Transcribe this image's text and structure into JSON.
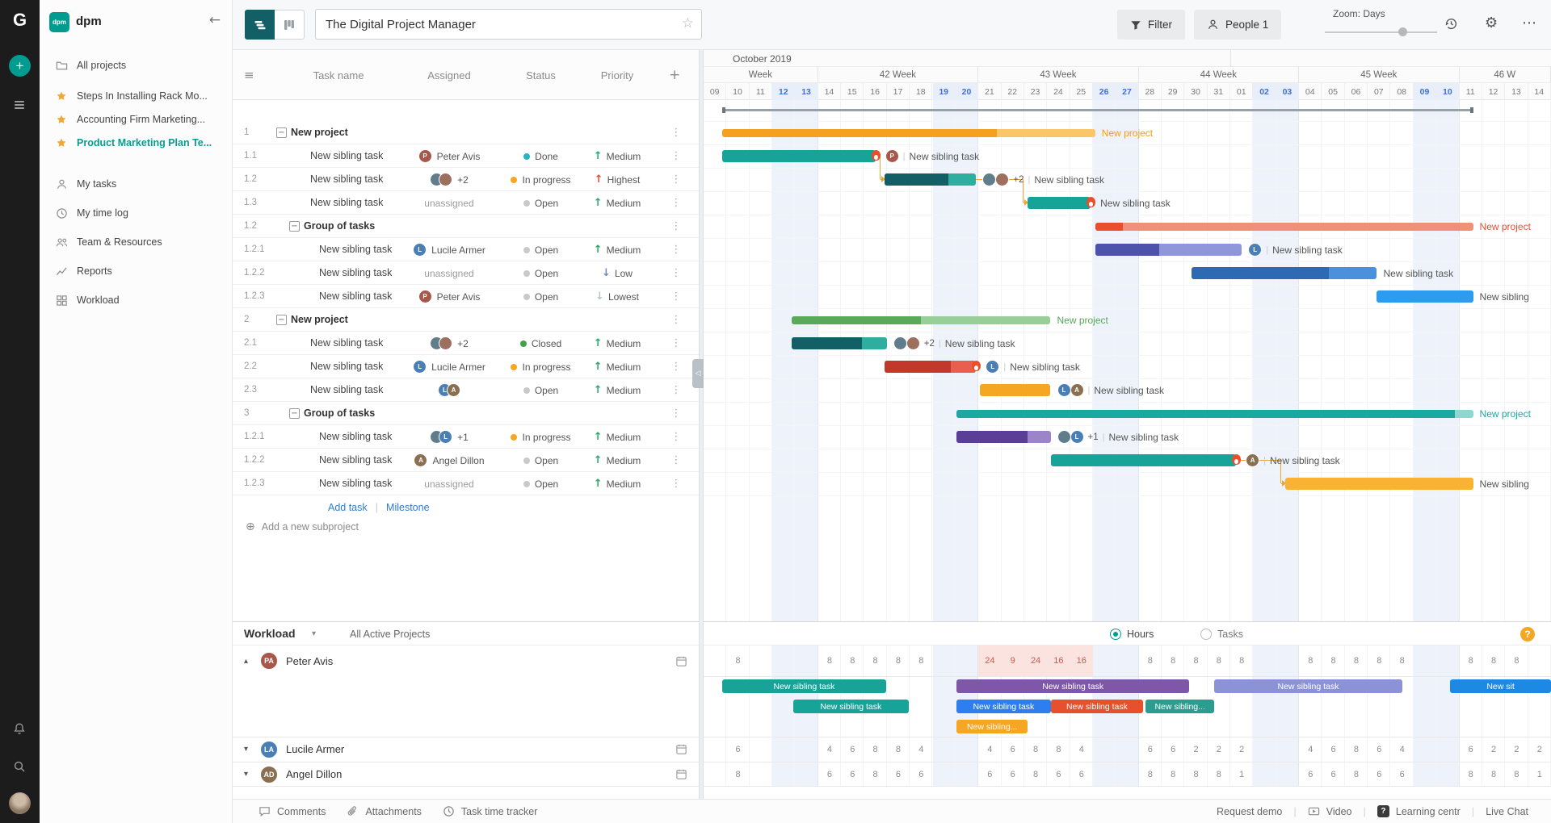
{
  "rail": {
    "logo": "G"
  },
  "people": {
    "PA": {
      "bg": "#a8574a",
      "init": "P"
    },
    "LA": {
      "bg": "#4a7fb5",
      "init": "L"
    },
    "AD": {
      "bg": "#8a6f50",
      "init": "A"
    },
    "U1": {
      "bg": "#607d8b",
      "init": ""
    },
    "U2": {
      "bg": "#9c6f5f",
      "init": ""
    }
  },
  "sidebar": {
    "workspace_logo": "dpm",
    "workspace_name": "dpm",
    "top": [
      {
        "id": "all-projects",
        "icon": "folder",
        "label": "All projects"
      }
    ],
    "starred": [
      {
        "label": "Steps In Installing Rack Mo...",
        "active": false
      },
      {
        "label": "Accounting Firm Marketing...",
        "active": false
      },
      {
        "label": "Product Marketing Plan Te...",
        "active": true
      }
    ],
    "nav": [
      {
        "id": "my-tasks",
        "icon": "person",
        "label": "My tasks"
      },
      {
        "id": "my-time-log",
        "icon": "clock",
        "label": "My time log"
      },
      {
        "id": "team-resources",
        "icon": "people",
        "label": "Team & Resources"
      },
      {
        "id": "reports",
        "icon": "chart",
        "label": "Reports"
      },
      {
        "id": "workload",
        "icon": "grid",
        "label": "Workload"
      }
    ]
  },
  "toolbar": {
    "title": "The Digital Project Manager",
    "filter_label": "Filter",
    "people_label": "People 1",
    "zoom_label": "Zoom: Days"
  },
  "table": {
    "columns": [
      "Task name",
      "Assigned",
      "Status",
      "Priority"
    ],
    "add_task": "Add task",
    "milestone": "Milestone",
    "add_subproject": "Add a new subproject",
    "rows": [
      {
        "num": "1",
        "group": true,
        "indent": 0,
        "name": "New project"
      },
      {
        "num": "1.1",
        "indent": 1,
        "name": "New sibling task",
        "assigned": {
          "avatars": [
            "PA"
          ],
          "text": "Peter Avis"
        },
        "status": {
          "label": "Done",
          "color": "#2bb3c0"
        },
        "priority": {
          "label": "Medium",
          "dir": "up",
          "color": "#27a866"
        }
      },
      {
        "num": "1.2",
        "indent": 1,
        "name": "New sibling task",
        "assigned": {
          "avatars": [
            "U1",
            "U2"
          ],
          "text": "+2"
        },
        "status": {
          "label": "In progress",
          "color": "#f5a623"
        },
        "priority": {
          "label": "Highest",
          "dir": "up",
          "color": "#e64c3c"
        }
      },
      {
        "num": "1.3",
        "indent": 1,
        "name": "New sibling task",
        "assigned": {
          "text": "unassigned",
          "muted": true
        },
        "status": {
          "label": "Open",
          "color": "#c9c9c9"
        },
        "priority": {
          "label": "Medium",
          "dir": "up",
          "color": "#27a866"
        }
      },
      {
        "num": "1.2",
        "group": true,
        "indent": 1,
        "name": "Group of tasks"
      },
      {
        "num": "1.2.1",
        "indent": 2,
        "name": "New sibling task",
        "assigned": {
          "avatars": [
            "LA"
          ],
          "text": "Lucile Armer"
        },
        "status": {
          "label": "Open",
          "color": "#c9c9c9"
        },
        "priority": {
          "label": "Medium",
          "dir": "up",
          "color": "#27a866"
        }
      },
      {
        "num": "1.2.2",
        "indent": 2,
        "name": "New sibling task",
        "assigned": {
          "text": "unassigned",
          "muted": true
        },
        "status": {
          "label": "Open",
          "color": "#c9c9c9"
        },
        "priority": {
          "label": "Low",
          "dir": "down",
          "color": "#6d87c0"
        }
      },
      {
        "num": "1.2.3",
        "indent": 2,
        "name": "New sibling task",
        "assigned": {
          "avatars": [
            "PA"
          ],
          "text": "Peter Avis"
        },
        "status": {
          "label": "Open",
          "color": "#c9c9c9"
        },
        "priority": {
          "label": "Lowest",
          "dir": "down",
          "color": "#b9c2cf"
        }
      },
      {
        "num": "2",
        "group": true,
        "indent": 0,
        "name": "New project"
      },
      {
        "num": "2.1",
        "indent": 1,
        "name": "New sibling task",
        "assigned": {
          "avatars": [
            "U1",
            "U2"
          ],
          "text": "+2"
        },
        "status": {
          "label": "Closed",
          "color": "#43a047"
        },
        "priority": {
          "label": "Medium",
          "dir": "up",
          "color": "#27a866"
        }
      },
      {
        "num": "2.2",
        "indent": 1,
        "name": "New sibling task",
        "assigned": {
          "avatars": [
            "LA"
          ],
          "text": "Lucile Armer"
        },
        "status": {
          "label": "In progress",
          "color": "#f5a623"
        },
        "priority": {
          "label": "Medium",
          "dir": "up",
          "color": "#27a866"
        }
      },
      {
        "num": "2.3",
        "indent": 1,
        "name": "New sibling task",
        "assigned": {
          "avatars": [
            "LA",
            "AD"
          ],
          "text": ""
        },
        "status": {
          "label": "Open",
          "color": "#c9c9c9"
        },
        "priority": {
          "label": "Medium",
          "dir": "up",
          "color": "#27a866"
        }
      },
      {
        "num": "3",
        "group": true,
        "indent": 1,
        "name": "Group of tasks"
      },
      {
        "num": "1.2.1",
        "indent": 2,
        "name": "New sibling task",
        "assigned": {
          "avatars": [
            "U1",
            "LA"
          ],
          "text": "+1"
        },
        "status": {
          "label": "In progress",
          "color": "#f5a623"
        },
        "priority": {
          "label": "Medium",
          "dir": "up",
          "color": "#27a866"
        }
      },
      {
        "num": "1.2.2",
        "indent": 2,
        "name": "New sibling task",
        "assigned": {
          "avatars": [
            "AD"
          ],
          "text": "Angel Dillon"
        },
        "status": {
          "label": "Open",
          "color": "#c9c9c9"
        },
        "priority": {
          "label": "Medium",
          "dir": "up",
          "color": "#27a866"
        }
      },
      {
        "num": "1.2.3",
        "indent": 2,
        "name": "New sibling task",
        "assigned": {
          "text": "unassigned",
          "muted": true
        },
        "status": {
          "label": "Open",
          "color": "#c9c9c9"
        },
        "priority": {
          "label": "Medium",
          "dir": "up",
          "color": "#27a866"
        }
      }
    ]
  },
  "timeline": {
    "month": "October 2019",
    "month_boundary_day": 23,
    "weeks": [
      {
        "label": "Week",
        "days": 5
      },
      {
        "label": "42 Week",
        "days": 7
      },
      {
        "label": "43 Week",
        "days": 7
      },
      {
        "label": "44 Week",
        "days": 7
      },
      {
        "label": "45 Week",
        "days": 7
      },
      {
        "label": "46 W",
        "days": 4
      }
    ],
    "days": [
      "09",
      "10",
      "11",
      "12",
      "13",
      "14",
      "15",
      "16",
      "17",
      "18",
      "19",
      "20",
      "21",
      "22",
      "23",
      "24",
      "25",
      "26",
      "27",
      "28",
      "29",
      "30",
      "31",
      "01",
      "02",
      "03",
      "04",
      "05",
      "06",
      "07",
      "08",
      "09",
      "10",
      "11",
      "12",
      "13",
      "14"
    ],
    "weekends": [
      3,
      4,
      10,
      11,
      17,
      18,
      24,
      25,
      31,
      32
    ]
  },
  "gantt": {
    "summary_line": {
      "start": 0.82,
      "end": 33.6
    },
    "bars": [
      {
        "row": 0,
        "start": 0.82,
        "end": 17.1,
        "type": "summary",
        "color": "#fbc667",
        "progress_color": "#f5a01f",
        "progress_end": 12.8,
        "label": "New project",
        "label_color": "#f39c12"
      },
      {
        "row": 1,
        "start": 0.82,
        "end": 7.5,
        "color": "#17a398",
        "fire": true,
        "avatars": [
          "PA"
        ],
        "label": "New sibling task"
      },
      {
        "row": 2,
        "start": 7.9,
        "end": 11.9,
        "color": "#2fae9f",
        "progress_color": "#135f66",
        "progress_end": 10.7,
        "avatars": [
          "U1",
          "U2"
        ],
        "extra": "+2",
        "label": "New sibling task"
      },
      {
        "row": 3,
        "start": 14.15,
        "end": 16.9,
        "color": "#17a398",
        "fire": true,
        "label": "New sibling task"
      },
      {
        "row": 4,
        "start": 17.1,
        "end": 33.6,
        "type": "summary",
        "color": "#f0907a",
        "progress_color": "#e8502d",
        "progress_end": 18.3,
        "label": "New project",
        "label_color": "#e8502d"
      },
      {
        "row": 5,
        "start": 17.1,
        "end": 23.5,
        "color": "#8f96d9",
        "progress_color": "#4d52ab",
        "progress_end": 19.9,
        "avatars": [
          "LA"
        ],
        "label": "New sibling task"
      },
      {
        "row": 6,
        "start": 21.3,
        "end": 29.4,
        "color": "#4a90dc",
        "progress_color": "#2e69b3",
        "progress_end": 27.3,
        "label": "New sibling task"
      },
      {
        "row": 7,
        "start": 29.4,
        "end": 33.6,
        "color": "#2d9bf0",
        "label": "New sibling"
      },
      {
        "row": 8,
        "start": 3.85,
        "end": 15.15,
        "type": "summary",
        "color": "#98ce98",
        "progress_color": "#5aa85a",
        "progress_end": 9.5,
        "label": "New project",
        "label_color": "#57a757"
      },
      {
        "row": 9,
        "start": 3.85,
        "end": 8.0,
        "color": "#2fae9f",
        "progress_color": "#135f66",
        "progress_end": 6.9,
        "avatars": [
          "U1",
          "U2"
        ],
        "extra": "+2",
        "label": "New sibling task"
      },
      {
        "row": 10,
        "start": 7.9,
        "end": 11.9,
        "color": "#e95f4e",
        "progress_color": "#c0392b",
        "progress_end": 10.8,
        "fire": true,
        "avatars": [
          "LA"
        ],
        "label": "New sibling task"
      },
      {
        "row": 11,
        "start": 12.05,
        "end": 15.15,
        "color": "#f5a623",
        "avatars": [
          "LA",
          "AD"
        ],
        "label": "New sibling task"
      },
      {
        "row": 12,
        "start": 11.05,
        "end": 33.6,
        "type": "summary",
        "color": "#8fd6d1",
        "progress_color": "#1ba8a0",
        "progress_end": 32.8,
        "label": "New project",
        "label_color": "#1ba8a0"
      },
      {
        "row": 13,
        "start": 11.05,
        "end": 15.15,
        "color": "#9c84c9",
        "progress_color": "#5b3f96",
        "progress_end": 14.15,
        "avatars": [
          "U1",
          "LA"
        ],
        "extra": "+1",
        "label": "New sibling task"
      },
      {
        "row": 14,
        "start": 15.15,
        "end": 23.25,
        "color": "#17a398",
        "fire": true,
        "avatars": [
          "AD"
        ],
        "label": "New sibling task"
      },
      {
        "row": 15,
        "start": 25.4,
        "end": 33.6,
        "color": "#f9b234",
        "label": "New sibling"
      }
    ],
    "connectors": [
      [
        1,
        2
      ],
      [
        2,
        3
      ],
      [
        14,
        15
      ]
    ]
  },
  "workload": {
    "title": "Workload",
    "filter": "All Active Projects",
    "hours_label": "Hours",
    "tasks_label": "Tasks",
    "members": [
      {
        "name": "Peter Avis",
        "initials": "PA",
        "color": "#a8574a",
        "expanded": true,
        "hours": {
          "1": 8,
          "5": 8,
          "6": 8,
          "7": 8,
          "8": 8,
          "9": 8,
          "12": 24,
          "13": 9,
          "14": 24,
          "15": 16,
          "16": 16,
          "19": 8,
          "20": 8,
          "21": 8,
          "22": 8,
          "23": 8,
          "26": 8,
          "27": 8,
          "28": 8,
          "29": 8,
          "30": 8,
          "33": 8,
          "34": 8,
          "35": 8
        },
        "overload": [
          12,
          13,
          14,
          15,
          16
        ],
        "lanes": [
          [
            {
              "start": 0.82,
              "end": 7.96,
              "color": "#17a398",
              "label": "New sibling task"
            },
            {
              "start": 11.05,
              "end": 21.2,
              "color": "#7e57a8",
              "label": "New sibling task"
            },
            {
              "start": 22.3,
              "end": 30.5,
              "color": "#8b93d6",
              "label": "New sibling task"
            },
            {
              "start": 32.6,
              "end": 37,
              "color": "#1e88e5",
              "label": "New sit"
            }
          ],
          [
            {
              "start": 3.9,
              "end": 8.96,
              "color": "#17a398",
              "label": "New sibling task"
            },
            {
              "start": 11.05,
              "end": 15.15,
              "color": "#2d7ff0",
              "label": "New sibling task"
            },
            {
              "start": 15.15,
              "end": 19.2,
              "color": "#e8502d",
              "label": "New sibling task"
            },
            {
              "start": 19.3,
              "end": 22.3,
              "color": "#2a9d8f",
              "label": "New sibling..."
            }
          ],
          [
            {
              "start": 11.05,
              "end": 14.15,
              "color": "#f5a623",
              "label": "New sibling..."
            }
          ]
        ]
      },
      {
        "name": "Lucile Armer",
        "initials": "LA",
        "color": "#4a7fb5",
        "expanded": false,
        "hours": {
          "1": 6,
          "5": 4,
          "6": 6,
          "7": 8,
          "8": 8,
          "9": 4,
          "12": 4,
          "13": 6,
          "14": 8,
          "15": 8,
          "16": 4,
          "19": 6,
          "20": 6,
          "21": 2,
          "22": 2,
          "23": 2,
          "26": 4,
          "27": 6,
          "28": 8,
          "29": 6,
          "30": 4,
          "33": 6,
          "34": 2,
          "35": 2,
          "36": 2
        },
        "overload": [],
        "lanes": []
      },
      {
        "name": "Angel Dillon",
        "initials": "AD",
        "color": "#8a6f50",
        "expanded": false,
        "hours": {
          "1": 8,
          "5": 6,
          "6": 6,
          "7": 8,
          "8": 6,
          "9": 6,
          "12": 6,
          "13": 6,
          "14": 8,
          "15": 6,
          "16": 6,
          "19": 8,
          "20": 8,
          "21": 8,
          "22": 8,
          "23": 1,
          "26": 6,
          "27": 6,
          "28": 8,
          "29": 6,
          "30": 6,
          "33": 8,
          "34": 8,
          "35": 8,
          "36": 1
        },
        "overload": [],
        "lanes": []
      }
    ]
  },
  "statusbar": {
    "left": [
      {
        "icon": "bubble",
        "label": "Comments"
      },
      {
        "icon": "paperclip",
        "label": "Attachments"
      },
      {
        "icon": "clock",
        "label": "Task time tracker"
      }
    ],
    "right": [
      {
        "label": "Request demo"
      },
      {
        "icon": "video",
        "label": "Video"
      },
      {
        "icon": "qsquare",
        "label": "Learning centr"
      },
      {
        "label": "Live Chat"
      }
    ]
  }
}
